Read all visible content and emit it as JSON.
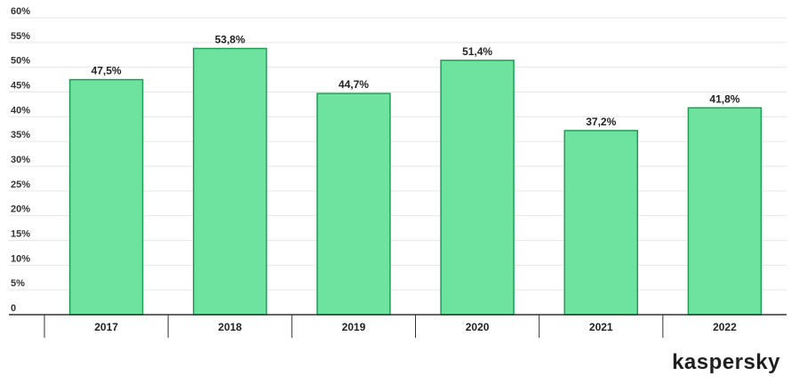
{
  "chart_data": {
    "type": "bar",
    "categories": [
      "2017",
      "2018",
      "2019",
      "2020",
      "2021",
      "2022"
    ],
    "values": [
      47.5,
      53.8,
      44.7,
      51.4,
      37.2,
      41.8
    ],
    "data_labels": [
      "47,5%",
      "53,8%",
      "44,7%",
      "51,4%",
      "37,2%",
      "41,8%"
    ],
    "y_ticks": [
      "0",
      "5%",
      "10%",
      "15%",
      "20%",
      "25%",
      "30%",
      "35%",
      "40%",
      "45%",
      "50%",
      "55%",
      "60%"
    ],
    "ylim": [
      0,
      60
    ],
    "grid": true,
    "title": "",
    "xlabel": "",
    "ylabel": ""
  },
  "brand": "kaspersky",
  "colors": {
    "bar_fill": "#6ee3a0",
    "bar_stroke": "#1f9e55",
    "grid": "#e6e6e6",
    "axis": "#333333"
  }
}
